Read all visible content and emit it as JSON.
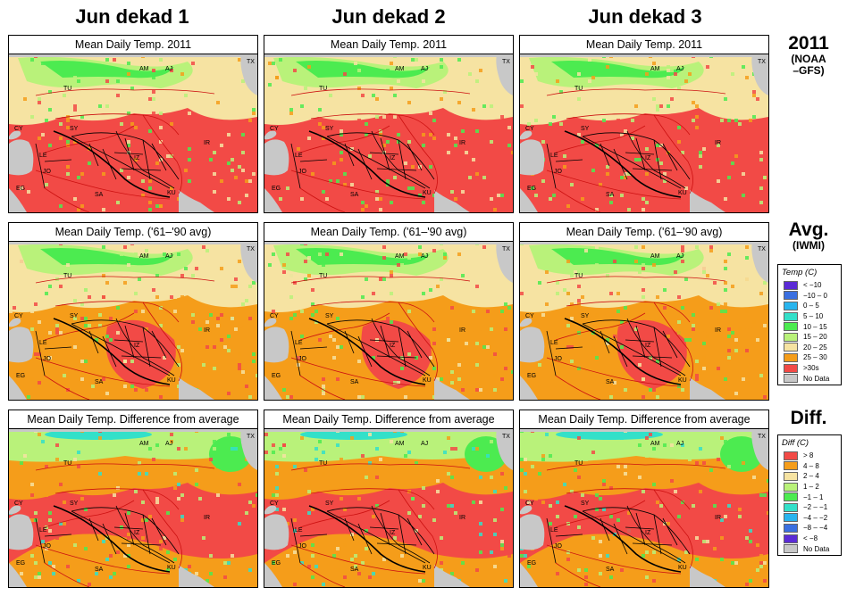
{
  "columns": [
    "Jun dekad 1",
    "Jun dekad 2",
    "Jun dekad 3"
  ],
  "rows": [
    {
      "key": "obs",
      "panel_title": "Mean Daily Temp. 2011",
      "label": "2011",
      "sublabel": "(NOAA\n–GFS)"
    },
    {
      "key": "avg",
      "panel_title": "Mean Daily Temp. ('61–'90 avg)",
      "label": "Avg.",
      "sublabel": "(IWMI)"
    },
    {
      "key": "diff",
      "panel_title": "Mean Daily Temp. Difference from average",
      "label": "Diff.",
      "sublabel": ""
    }
  ],
  "country_labels": [
    "TX",
    "AM",
    "AJ",
    "TU",
    "IR",
    "SY",
    "CY",
    "LE",
    "IZ",
    "JO",
    "EG",
    "SA",
    "KU"
  ],
  "temp_legend": {
    "title": "Temp (C)",
    "items": [
      {
        "label": "< −10",
        "color": "#5b2bd6"
      },
      {
        "label": "−10 –  0",
        "color": "#3a6fe0"
      },
      {
        "label": "0 –  5",
        "color": "#28b4ee"
      },
      {
        "label": "5 – 10",
        "color": "#33e0c9"
      },
      {
        "label": "10 – 15",
        "color": "#4ceb50"
      },
      {
        "label": "15 – 20",
        "color": "#b9f27a"
      },
      {
        "label": "20 – 25",
        "color": "#f6e3a2"
      },
      {
        "label": "25 – 30",
        "color": "#f59d1a"
      },
      {
        "label": ">30s",
        "color": "#f24a46"
      },
      {
        "label": "No Data",
        "color": "#c8c8c8"
      }
    ]
  },
  "diff_legend": {
    "title": "Diff (C)",
    "items": [
      {
        "label": "> 8",
        "color": "#f24a46"
      },
      {
        "label": "4 – 8",
        "color": "#f59d1a"
      },
      {
        "label": "2 – 4",
        "color": "#f6e3a2"
      },
      {
        "label": "1 – 2",
        "color": "#b9f27a"
      },
      {
        "label": "−1 – 1",
        "color": "#4ceb50"
      },
      {
        "label": "−2 – −1",
        "color": "#33e0c9"
      },
      {
        "label": "−4 – −2",
        "color": "#28b4ee"
      },
      {
        "label": "−8 – −4",
        "color": "#3a6fe0"
      },
      {
        "label": "< −8",
        "color": "#5b2bd6"
      },
      {
        "label": "No Data",
        "color": "#c8c8c8"
      }
    ]
  },
  "colors": {
    "red": "#f24a46",
    "orange": "#f59d1a",
    "tan": "#f6e3a2",
    "ltgreen": "#b9f27a",
    "green": "#4ceb50",
    "teal": "#33e0c9",
    "cyan": "#28b4ee",
    "blue": "#3a6fe0",
    "purple": "#5b2bd6",
    "nodata": "#c8c8c8",
    "border_red": "#cc1111",
    "border_black": "#000000"
  }
}
